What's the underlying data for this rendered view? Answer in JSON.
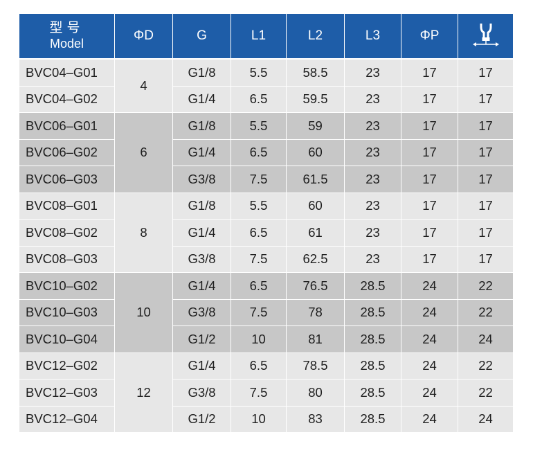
{
  "header": {
    "model_cn": "型号",
    "model_en": "Model",
    "phi_d": "ΦD",
    "g": "G",
    "l1": "L1",
    "l2": "L2",
    "l3": "L3",
    "phi_p": "ΦP",
    "last_icon": "wrench-size-icon"
  },
  "colors": {
    "header_bg": "#1e5da8",
    "row_light": "#e7e7e7",
    "row_dark": "#c7c7c7",
    "text": "#1e1e1e"
  },
  "groups": [
    {
      "d": "4",
      "shade": "light",
      "rows": [
        {
          "model": "BVC04–G01",
          "g": "G1/8",
          "l1": "5.5",
          "l2": "58.5",
          "l3": "23",
          "p": "17",
          "w": "17"
        },
        {
          "model": "BVC04–G02",
          "g": "G1/4",
          "l1": "6.5",
          "l2": "59.5",
          "l3": "23",
          "p": "17",
          "w": "17"
        }
      ]
    },
    {
      "d": "6",
      "shade": "dark",
      "rows": [
        {
          "model": "BVC06–G01",
          "g": "G1/8",
          "l1": "5.5",
          "l2": "59",
          "l3": "23",
          "p": "17",
          "w": "17"
        },
        {
          "model": "BVC06–G02",
          "g": "G1/4",
          "l1": "6.5",
          "l2": "60",
          "l3": "23",
          "p": "17",
          "w": "17"
        },
        {
          "model": "BVC06–G03",
          "g": "G3/8",
          "l1": "7.5",
          "l2": "61.5",
          "l3": "23",
          "p": "17",
          "w": "17"
        }
      ]
    },
    {
      "d": "8",
      "shade": "light",
      "rows": [
        {
          "model": "BVC08–G01",
          "g": "G1/8",
          "l1": "5.5",
          "l2": "60",
          "l3": "23",
          "p": "17",
          "w": "17"
        },
        {
          "model": "BVC08–G02",
          "g": "G1/4",
          "l1": "6.5",
          "l2": "61",
          "l3": "23",
          "p": "17",
          "w": "17"
        },
        {
          "model": "BVC08–G03",
          "g": "G3/8",
          "l1": "7.5",
          "l2": "62.5",
          "l3": "23",
          "p": "17",
          "w": "17"
        }
      ]
    },
    {
      "d": "10",
      "shade": "dark",
      "rows": [
        {
          "model": "BVC10–G02",
          "g": "G1/4",
          "l1": "6.5",
          "l2": "76.5",
          "l3": "28.5",
          "p": "24",
          "w": "22"
        },
        {
          "model": "BVC10–G03",
          "g": "G3/8",
          "l1": "7.5",
          "l2": "78",
          "l3": "28.5",
          "p": "24",
          "w": "22"
        },
        {
          "model": "BVC10–G04",
          "g": "G1/2",
          "l1": "10",
          "l2": "81",
          "l3": "28.5",
          "p": "24",
          "w": "24"
        }
      ]
    },
    {
      "d": "12",
      "shade": "light",
      "rows": [
        {
          "model": "BVC12–G02",
          "g": "G1/4",
          "l1": "6.5",
          "l2": "78.5",
          "l3": "28.5",
          "p": "24",
          "w": "22"
        },
        {
          "model": "BVC12–G03",
          "g": "G3/8",
          "l1": "7.5",
          "l2": "80",
          "l3": "28.5",
          "p": "24",
          "w": "22"
        },
        {
          "model": "BVC12–G04",
          "g": "G1/2",
          "l1": "10",
          "l2": "83",
          "l3": "28.5",
          "p": "24",
          "w": "24"
        }
      ]
    }
  ]
}
